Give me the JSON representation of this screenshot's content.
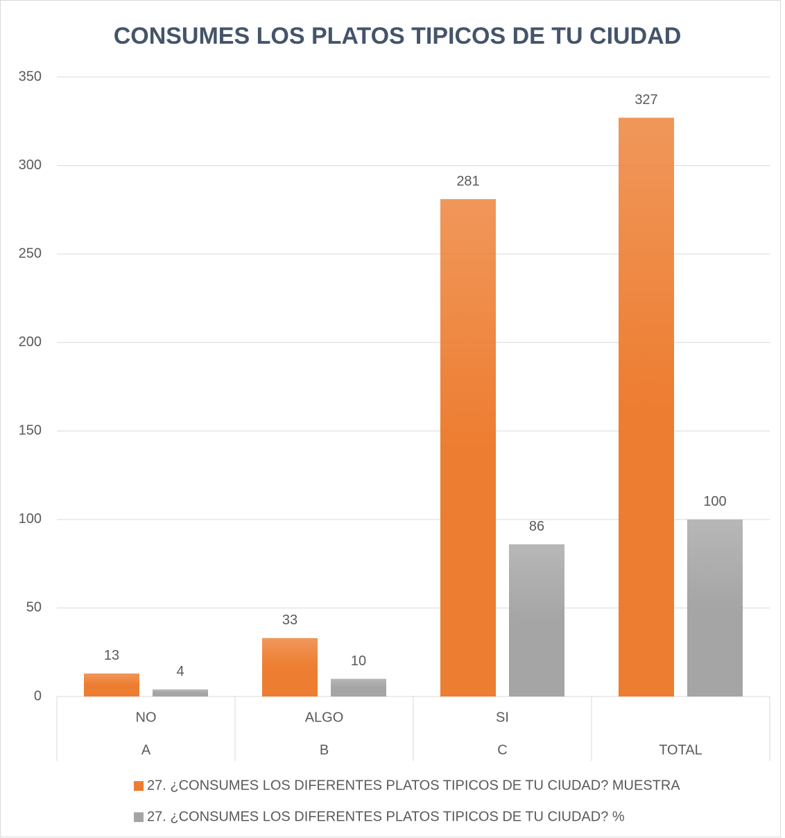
{
  "chart_data": {
    "type": "bar",
    "title": "CONSUMES LOS PLATOS TIPICOS DE TU CIUDAD",
    "categories": [
      "A",
      "B",
      "C",
      "TOTAL"
    ],
    "subcategories": [
      "NO",
      "ALGO",
      "SI",
      null
    ],
    "series": [
      {
        "name": "27. ¿CONSUMES LOS DIFERENTES PLATOS TIPICOS DE TU CIUDAD? MUESTRA",
        "color": "#ed7d31",
        "values": [
          13,
          33,
          281,
          327
        ]
      },
      {
        "name": "27. ¿CONSUMES LOS DIFERENTES PLATOS TIPICOS DE TU CIUDAD? %",
        "color": "#a5a5a5",
        "values": [
          4,
          10,
          86,
          100
        ]
      }
    ],
    "ylim": [
      0,
      350
    ],
    "yticks": [
      0,
      50,
      100,
      150,
      200,
      250,
      300,
      350
    ],
    "grid": true,
    "legend": "bottom"
  }
}
